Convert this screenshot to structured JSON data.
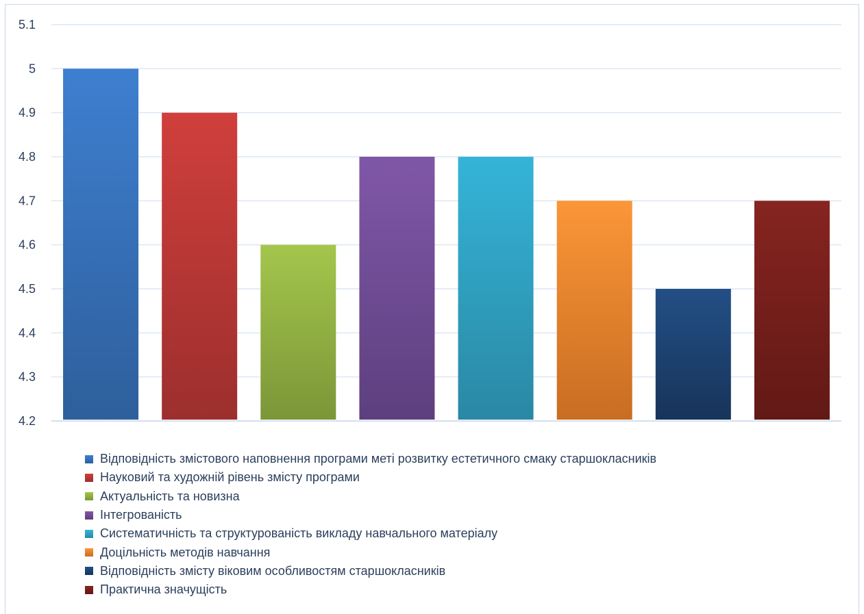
{
  "chart_data": {
    "type": "bar",
    "title": "",
    "xlabel": "",
    "ylabel": "",
    "ylim": [
      4.2,
      5.1
    ],
    "yticks": [
      "4.2",
      "4.3",
      "4.4",
      "4.5",
      "4.6",
      "4.7",
      "4.8",
      "4.9",
      "5",
      "5.1"
    ],
    "grid": true,
    "legend_position": "bottom",
    "series": [
      {
        "name": "Відповідність змістового наповнення програми меті розвитку естетичного смаку старшокласників",
        "value": 5.0,
        "color_top": "#3e7fd0",
        "color_bottom": "#2e5f9c"
      },
      {
        "name": "Науковий та художній рівень змісту програми",
        "value": 4.9,
        "color_top": "#d03f3c",
        "color_bottom": "#9c2f2d"
      },
      {
        "name": "Актуальність та новизна",
        "value": 4.6,
        "color_top": "#a4c64c",
        "color_bottom": "#7b9638"
      },
      {
        "name": "Інтегрованість",
        "value": 4.8,
        "color_top": "#8057a8",
        "color_bottom": "#5d3f7e"
      },
      {
        "name": "Систематичність та структурованість викладу навчального матеріалу",
        "value": 4.8,
        "color_top": "#35b4d8",
        "color_bottom": "#2a88a4"
      },
      {
        "name": "Доцільність методів навчання",
        "value": 4.7,
        "color_top": "#fb9638",
        "color_bottom": "#c86d22"
      },
      {
        "name": "Відповідність змісту віковим особливостям старшокласників",
        "value": 4.5,
        "color_top": "#234f85",
        "color_bottom": "#17345a"
      },
      {
        "name": "Практична значущість",
        "value": 4.7,
        "color_top": "#862420",
        "color_bottom": "#621915"
      }
    ]
  }
}
